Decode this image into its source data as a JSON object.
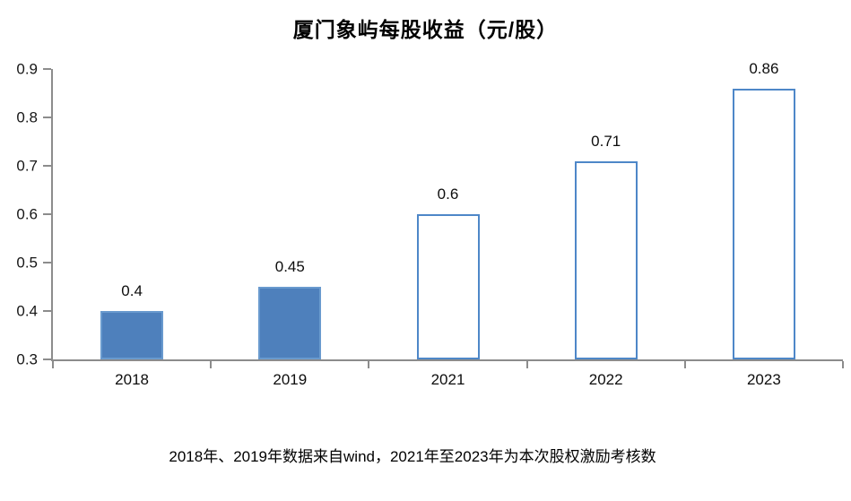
{
  "title": "厦门象屿每股收益（元/股）",
  "footnote": "2018年、2019年数据来自wind，2021年至2023年为本次股权激励考核数",
  "colors": {
    "solid_bar_fill": "#4e80bc",
    "solid_bar_border": "#699ace",
    "outline_bar_border": "#4e87c8",
    "axis_line": "#8c8c8c",
    "text": "#000000"
  },
  "chart_data": {
    "type": "bar",
    "title": "厦门象屿每股收益（元/股）",
    "categories": [
      "2018",
      "2019",
      "2021",
      "2022",
      "2023"
    ],
    "values": [
      0.4,
      0.45,
      0.6,
      0.71,
      0.86
    ],
    "value_labels": [
      "0.4",
      "0.45",
      "0.6",
      "0.71",
      "0.86"
    ],
    "bar_styles": [
      "solid",
      "solid",
      "outline",
      "outline",
      "outline"
    ],
    "xlabel": "",
    "ylabel": "",
    "ylim": [
      0.3,
      0.9
    ],
    "ytick_step": 0.1,
    "ytick_labels": [
      "0.3",
      "0.4",
      "0.5",
      "0.6",
      "0.7",
      "0.8",
      "0.9"
    ],
    "grid": false,
    "legend_position": "none",
    "annotation": "2018年、2019年数据来自wind，2021年至2023年为本次股权激励考核数"
  }
}
